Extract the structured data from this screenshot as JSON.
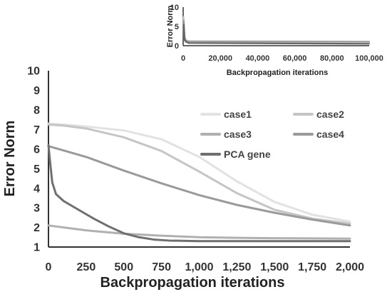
{
  "chart_data": [
    {
      "id": "main",
      "type": "line",
      "title": "",
      "xlabel": "Backpropagation iterations",
      "ylabel": "Error Norm",
      "xlim": [
        0,
        2000
      ],
      "ylim": [
        1,
        10
      ],
      "x_ticks": [
        0,
        250,
        500,
        750,
        1000,
        1250,
        1500,
        1750,
        2000
      ],
      "x_tick_labels": [
        "0",
        "250",
        "500",
        "750",
        "1,000",
        "1,250",
        "1,500",
        "1,750",
        "2,000"
      ],
      "y_ticks": [
        1,
        2,
        3,
        4,
        5,
        6,
        7,
        8,
        9,
        10
      ],
      "y_tick_labels": [
        "1",
        "2",
        "3",
        "4",
        "5",
        "6",
        "7",
        "8",
        "9",
        "10"
      ],
      "grid": false,
      "legend_position": "top-right",
      "series": [
        {
          "name": "case1",
          "color": "#e2e2e2",
          "x": [
            0,
            100,
            250,
            500,
            750,
            1000,
            1250,
            1500,
            1750,
            2000
          ],
          "y": [
            7.3,
            7.25,
            7.15,
            6.95,
            6.5,
            5.6,
            4.35,
            3.3,
            2.65,
            2.3
          ]
        },
        {
          "name": "case2",
          "color": "#c5c5c5",
          "x": [
            0,
            100,
            250,
            500,
            750,
            1000,
            1250,
            1500,
            1750,
            2000
          ],
          "y": [
            7.25,
            7.2,
            7.05,
            6.6,
            5.9,
            4.85,
            3.75,
            2.9,
            2.45,
            2.2
          ]
        },
        {
          "name": "case3",
          "color": "#b0b0b0",
          "x": [
            0,
            250,
            500,
            750,
            1000,
            1250,
            1500,
            1750,
            2000
          ],
          "y": [
            2.1,
            1.85,
            1.68,
            1.58,
            1.5,
            1.47,
            1.45,
            1.44,
            1.43
          ]
        },
        {
          "name": "case4",
          "color": "#9a9a9a",
          "x": [
            0,
            250,
            500,
            750,
            1000,
            1250,
            1500,
            1750,
            2000
          ],
          "y": [
            6.15,
            5.6,
            4.9,
            4.25,
            3.65,
            3.15,
            2.75,
            2.4,
            2.1
          ]
        },
        {
          "name": "PCA gene",
          "color": "#6f6f6f",
          "x": [
            0,
            10,
            25,
            50,
            100,
            200,
            300,
            400,
            500,
            600,
            700,
            800,
            1000,
            1500,
            2000
          ],
          "y": [
            6.2,
            5.4,
            4.3,
            3.7,
            3.35,
            2.9,
            2.45,
            2.05,
            1.7,
            1.5,
            1.38,
            1.33,
            1.3,
            1.3,
            1.3
          ]
        }
      ]
    },
    {
      "id": "inset",
      "type": "line",
      "title": "",
      "xlabel": "Backpropagation iterations",
      "ylabel": "Error Norm",
      "xlim": [
        0,
        100000
      ],
      "ylim": [
        0,
        10
      ],
      "x_ticks": [
        0,
        20000,
        40000,
        60000,
        80000,
        100000
      ],
      "x_tick_labels": [
        "0",
        "20,000",
        "40,000",
        "60,000",
        "80,000",
        "100,000"
      ],
      "y_ticks": [
        0,
        5,
        10
      ],
      "y_tick_labels": [
        "0",
        "5",
        "10"
      ],
      "grid": false,
      "series": [
        {
          "color": "#cccccc",
          "x": [
            0,
            300,
            800,
            1500,
            3000,
            100000
          ],
          "y": [
            1,
            7.5,
            2.5,
            1.4,
            1.2,
            1.1
          ]
        },
        {
          "color": "#999999",
          "x": [
            0,
            300,
            800,
            1500,
            3000,
            100000
          ],
          "y": [
            2,
            6.5,
            2.0,
            1.3,
            1.1,
            1.0
          ]
        },
        {
          "color": "#666666",
          "x": [
            0,
            300,
            800,
            1500,
            3000,
            100000
          ],
          "y": [
            0.6,
            5.5,
            1.5,
            1.0,
            0.7,
            0.5
          ]
        }
      ]
    }
  ]
}
